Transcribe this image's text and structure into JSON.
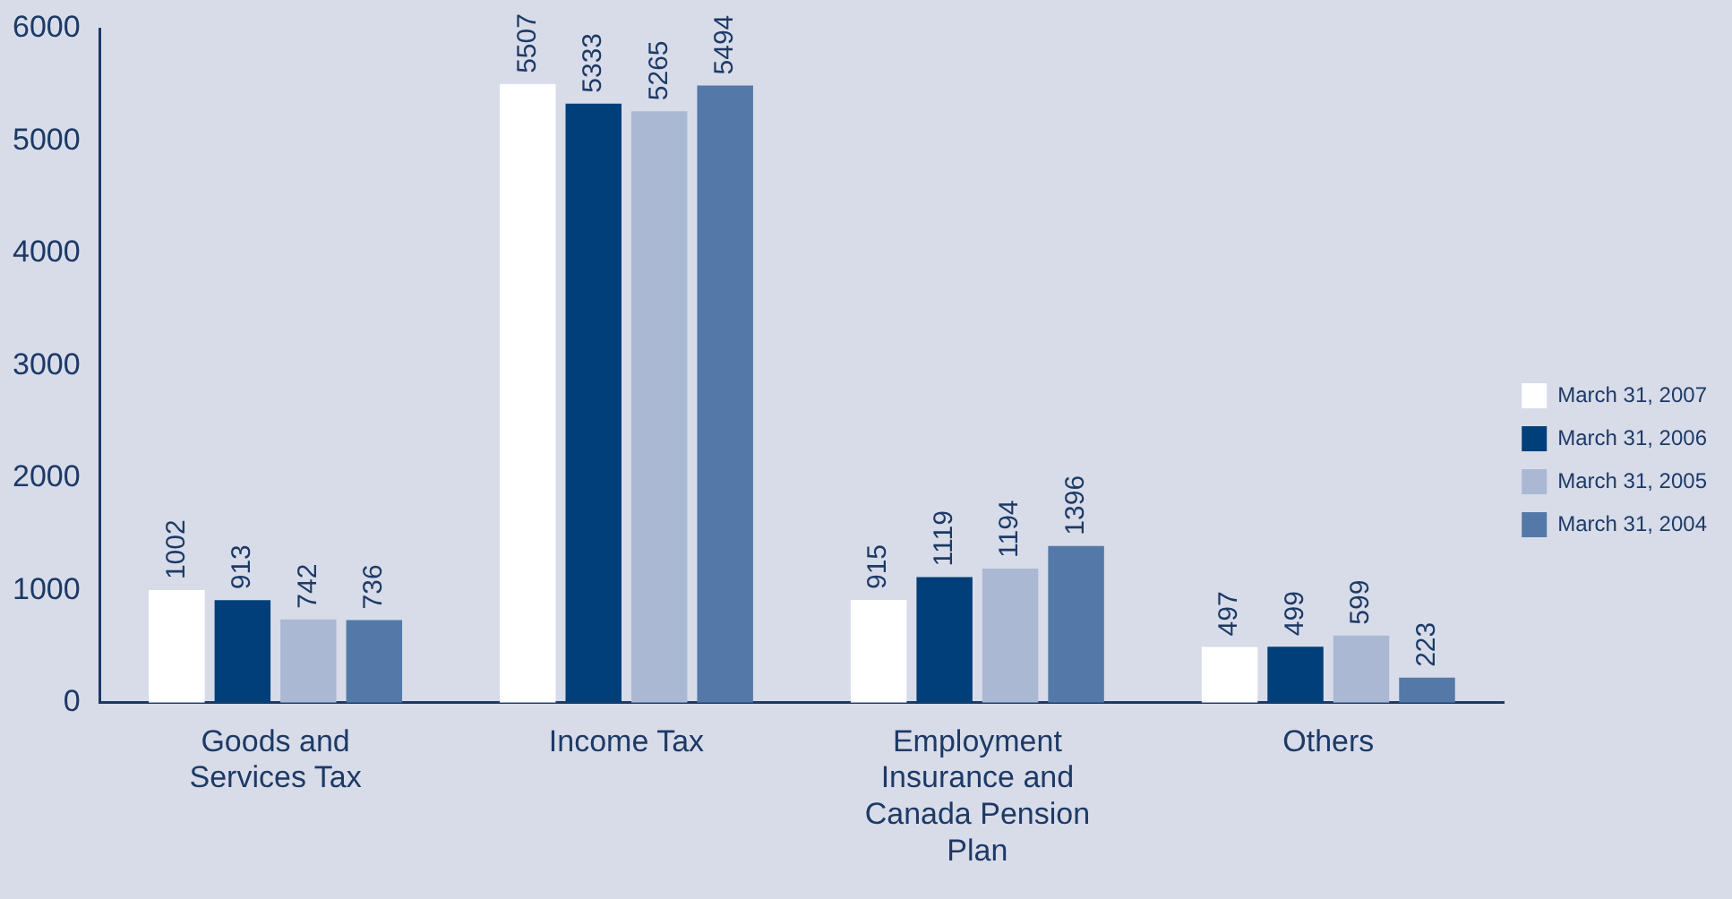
{
  "chart_data": {
    "type": "bar",
    "categories": [
      "Goods and Services Tax",
      "Income Tax",
      "Employment Insurance and Canada Pension Plan",
      "Others"
    ],
    "series": [
      {
        "name": "March 31, 2007",
        "color": "#ffffff",
        "values": [
          1002,
          5507,
          915,
          497
        ]
      },
      {
        "name": "March 31, 2006",
        "color": "#003f7a",
        "values": [
          913,
          5333,
          1119,
          499
        ]
      },
      {
        "name": "March 31, 2005",
        "color": "#aab8d4",
        "values": [
          742,
          5265,
          1194,
          599
        ]
      },
      {
        "name": "March 31, 2004",
        "color": "#5479a8",
        "values": [
          736,
          5494,
          1396,
          223
        ]
      }
    ],
    "ylim": [
      0,
      6000
    ],
    "yticks": [
      0,
      1000,
      2000,
      3000,
      4000,
      5000,
      6000
    ],
    "grid": false,
    "legend": "right",
    "data_labels": true
  }
}
